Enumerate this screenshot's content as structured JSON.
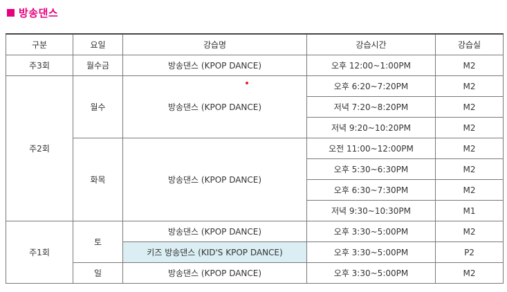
{
  "section_title": "방송댄스",
  "headers": {
    "category": "구분",
    "day": "요일",
    "course": "강습명",
    "time": "강습시간",
    "room": "강습실"
  },
  "rows": [
    {
      "category": "주3회",
      "day": "월수금",
      "course": "방송댄스 (KPOP DANCE)",
      "time": "오후 12:00~1:00PM",
      "room": "M2"
    },
    {
      "category": "주2회",
      "day": "월수",
      "course": "방송댄스 (KPOP DANCE)",
      "time": "오후 6:20~7:20PM",
      "room": "M2"
    },
    {
      "time": "저녁 7:20~8:20PM",
      "room": "M2"
    },
    {
      "time": "저녁 9:20~10:20PM",
      "room": "M2"
    },
    {
      "day": "화목",
      "course": "방송댄스 (KPOP DANCE)",
      "time": "오전 11:00~12:00PM",
      "room": "M2"
    },
    {
      "time": "오후 5:30~6:30PM",
      "room": "M2"
    },
    {
      "time": "오후 6:30~7:30PM",
      "room": "M2"
    },
    {
      "time": "저녁 9:30~10:30PM",
      "room": "M1"
    },
    {
      "category": "주1회",
      "day": "토",
      "course": "방송댄스 (KPOP DANCE)",
      "time": "오후 3:30~5:00PM",
      "room": "M2"
    },
    {
      "course": "키즈 방송댄스 (KID'S KPOP DANCE)",
      "time": "오후 3:30~5:00PM",
      "room": "P2"
    },
    {
      "day": "일",
      "course": "방송댄스 (KPOP DANCE)",
      "time": "오후 3:30~5:00PM",
      "room": "M2"
    }
  ],
  "colors": {
    "accent": "#e6007e",
    "kids_highlight": "#daeef3",
    "dot": "#e02020"
  }
}
